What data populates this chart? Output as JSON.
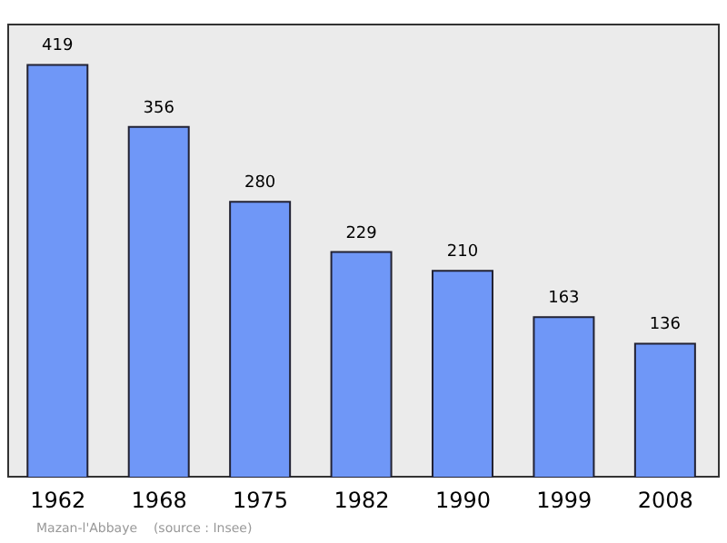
{
  "chart_data": {
    "type": "bar",
    "categories": [
      "1962",
      "1968",
      "1975",
      "1982",
      "1990",
      "1999",
      "2008"
    ],
    "values": [
      419,
      356,
      280,
      229,
      210,
      163,
      136
    ],
    "color": "#6f97f7",
    "data_labels": true,
    "annotations": [
      "Mazan-l'Abbaye    (source : Insee)"
    ]
  }
}
